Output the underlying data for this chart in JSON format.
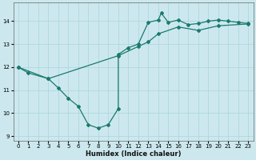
{
  "xlabel": "Humidex (Indice chaleur)",
  "xlim": [
    -0.5,
    23.5
  ],
  "ylim": [
    8.8,
    14.8
  ],
  "xticks": [
    0,
    1,
    2,
    3,
    4,
    5,
    6,
    7,
    8,
    9,
    10,
    11,
    12,
    13,
    14,
    15,
    16,
    17,
    18,
    19,
    20,
    21,
    22,
    23
  ],
  "yticks": [
    9,
    10,
    11,
    12,
    13,
    14
  ],
  "bg_color": "#cce8ee",
  "line_color": "#1a7a6e",
  "curve1_x": [
    0,
    1,
    3,
    4,
    5,
    6,
    7,
    8,
    9,
    10,
    10,
    11,
    12,
    13,
    14,
    14.3,
    15,
    16,
    17,
    18,
    19,
    20,
    21,
    22,
    23
  ],
  "curve1_y": [
    12.0,
    11.75,
    11.5,
    11.1,
    10.65,
    10.3,
    9.5,
    9.35,
    9.5,
    10.2,
    12.55,
    12.85,
    13.0,
    13.95,
    14.05,
    14.35,
    13.95,
    14.05,
    13.85,
    13.9,
    14.0,
    14.05,
    14.0,
    13.95,
    13.9
  ],
  "curve2_x": [
    0,
    3,
    10,
    12,
    13,
    14,
    16,
    18,
    20,
    23
  ],
  "curve2_y": [
    12.0,
    11.5,
    12.5,
    12.9,
    13.1,
    13.45,
    13.75,
    13.6,
    13.8,
    13.88
  ]
}
